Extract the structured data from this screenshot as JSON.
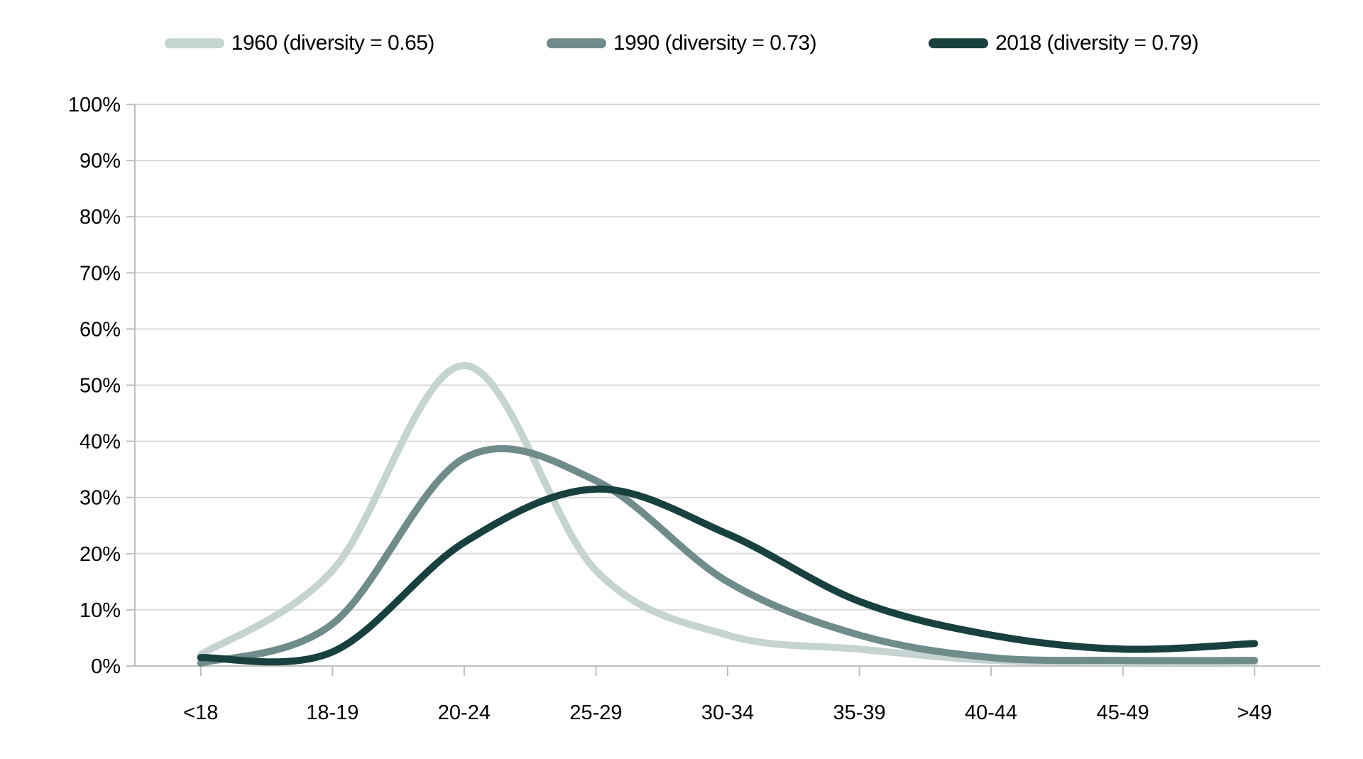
{
  "chart_data": {
    "type": "line",
    "title": "",
    "xlabel": "",
    "ylabel": "",
    "categories": [
      "<18",
      "18-19",
      "20-24",
      "25-29",
      "30-34",
      "35-39",
      "40-44",
      "45-49",
      ">49"
    ],
    "series": [
      {
        "name": "1960 (diversity = 0.65)",
        "color": "#c5d3d1",
        "values": [
          2,
          17,
          53.5,
          17,
          5.5,
          3,
          1,
          0.7,
          0.7
        ]
      },
      {
        "name": "1990 (diversity = 0.73)",
        "color": "#6f8c8a",
        "values": [
          0.5,
          7.5,
          37,
          33,
          15,
          5.5,
          1.5,
          1,
          1
        ]
      },
      {
        "name": "2018 (diversity = 0.79)",
        "color": "#17403e",
        "values": [
          1.5,
          2.5,
          22,
          31.5,
          23.5,
          11.5,
          5.5,
          3,
          4
        ]
      }
    ],
    "y_ticks": [
      "100%",
      "90%",
      "80%",
      "70%",
      "60%",
      "50%",
      "40%",
      "30%",
      "20%",
      "10%",
      "0%"
    ],
    "ylim": [
      0,
      100
    ],
    "grid": true,
    "line_style": "smooth",
    "legend_position": "top"
  },
  "colors": {
    "background": "#ffffff",
    "gridline": "#d9d9d9",
    "axis": "#bfbfbf",
    "text": "#000000"
  }
}
